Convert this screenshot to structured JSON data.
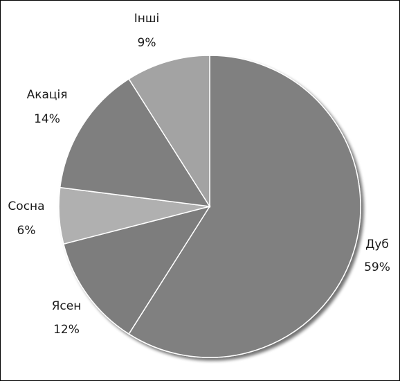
{
  "chart_data": {
    "type": "pie",
    "title": "",
    "legend": "none",
    "start_angle_deg": 0,
    "direction": "clockwise",
    "slices": [
      {
        "name": "Дуб",
        "value": 59,
        "label": "59%",
        "color": "#808080"
      },
      {
        "name": "Ясен",
        "value": 12,
        "label": "12%",
        "color": "#7d7d7d"
      },
      {
        "name": "Сосна",
        "value": 6,
        "label": "6%",
        "color": "#b0b0b0"
      },
      {
        "name": "Акація",
        "value": 14,
        "label": "14%",
        "color": "#7f7f7f"
      },
      {
        "name": "Інші",
        "value": 9,
        "label": "9%",
        "color": "#a3a3a3"
      }
    ]
  }
}
